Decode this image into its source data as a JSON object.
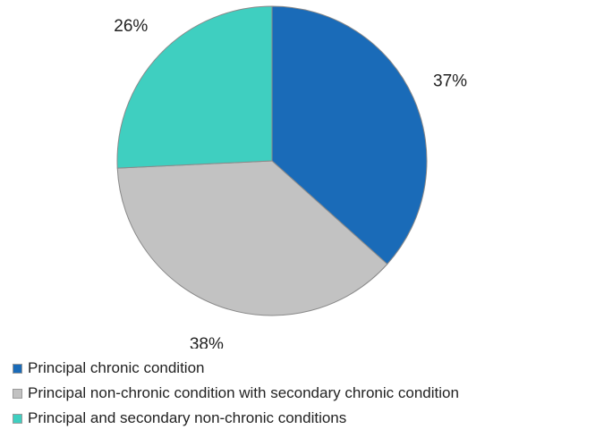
{
  "chart_data": {
    "type": "pie",
    "title": "",
    "slices": [
      {
        "label": "Principal chronic condition",
        "value": 37,
        "display": "37%",
        "color": "#1a6bb8"
      },
      {
        "label": "Principal non-chronic condition with secondary chronic condition",
        "value": 38,
        "display": "38%",
        "color": "#c2c2c2"
      },
      {
        "label": "Principal and secondary non-chronic conditions",
        "value": 26,
        "display": "26%",
        "color": "#3fcfc0"
      }
    ],
    "legend_position": "bottom-left",
    "start_angle": "12 o'clock",
    "direction": "clockwise"
  }
}
